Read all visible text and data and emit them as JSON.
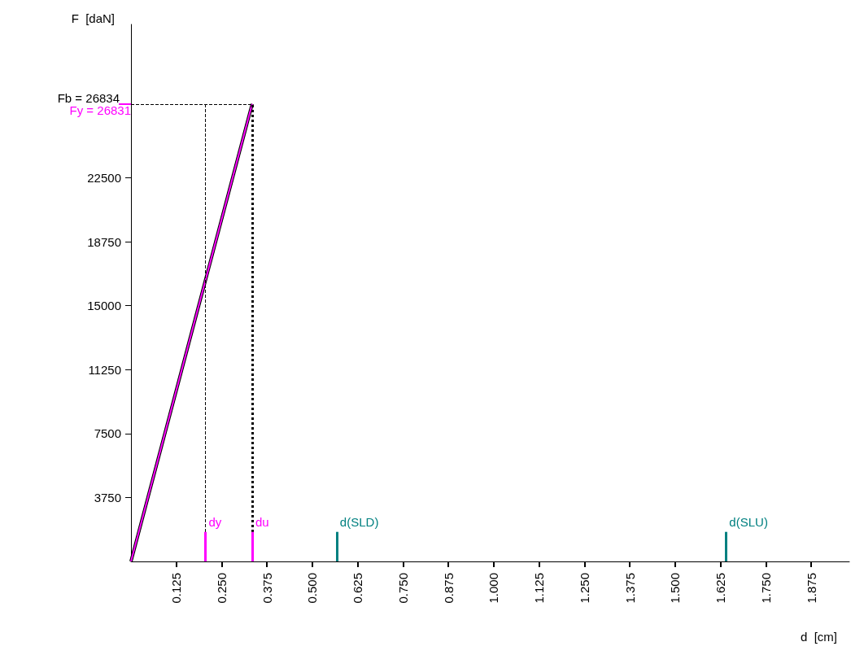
{
  "chart_data": {
    "type": "line",
    "xlabel": "d  [cm]",
    "ylabel": "F  [daN]",
    "xlim": [
      0,
      1.98
    ],
    "xticks": [
      {
        "value": 0.125,
        "label": "0.125"
      },
      {
        "value": 0.25,
        "label": "0.250"
      },
      {
        "value": 0.375,
        "label": "0.375"
      },
      {
        "value": 0.5,
        "label": "0.500"
      },
      {
        "value": 0.625,
        "label": "0.625"
      },
      {
        "value": 0.75,
        "label": "0.750"
      },
      {
        "value": 0.875,
        "label": "0.875"
      },
      {
        "value": 1.0,
        "label": "1.000"
      },
      {
        "value": 1.125,
        "label": "1.125"
      },
      {
        "value": 1.25,
        "label": "1.250"
      },
      {
        "value": 1.375,
        "label": "1.375"
      },
      {
        "value": 1.5,
        "label": "1.500"
      },
      {
        "value": 1.625,
        "label": "1.625"
      },
      {
        "value": 1.75,
        "label": "1.750"
      },
      {
        "value": 1.875,
        "label": "1.875"
      }
    ],
    "ylim": [
      0,
      31500
    ],
    "yticks": [
      3750,
      7500,
      11250,
      15000,
      18750,
      22500
    ],
    "x": [
      0,
      0.334
    ],
    "series": [
      {
        "color": "#000000",
        "values": [
          0,
          26834
        ]
      },
      {
        "color": "#ff00ff",
        "values": [
          0,
          26831
        ]
      }
    ],
    "ref_lines": [
      {
        "axis": "y",
        "value": 26834,
        "label": "Fb = 26834",
        "color": "#000000",
        "line_style": "dashed"
      },
      {
        "axis": "y",
        "value": 26831,
        "label": "Fy = 26831",
        "color": "#ff00ff"
      },
      {
        "axis": "x",
        "value": 0.205,
        "color": "#000000",
        "line_style": "dashed"
      },
      {
        "axis": "x",
        "value": 0.334,
        "color": "#000000",
        "line_style": "dotted"
      },
      {
        "axis": "x",
        "value": 0.205,
        "label": "dy",
        "color": "#ff00ff"
      },
      {
        "axis": "x",
        "value": 0.334,
        "label": "du",
        "color": "#ff00ff"
      },
      {
        "axis": "x",
        "value": 0.567,
        "label": "d(SLD)",
        "color": "#008080"
      },
      {
        "axis": "x",
        "value": 1.64,
        "label": "d(SLU)",
        "color": "#008080"
      }
    ],
    "grid": false,
    "marker": "none",
    "line_style": "solid"
  }
}
